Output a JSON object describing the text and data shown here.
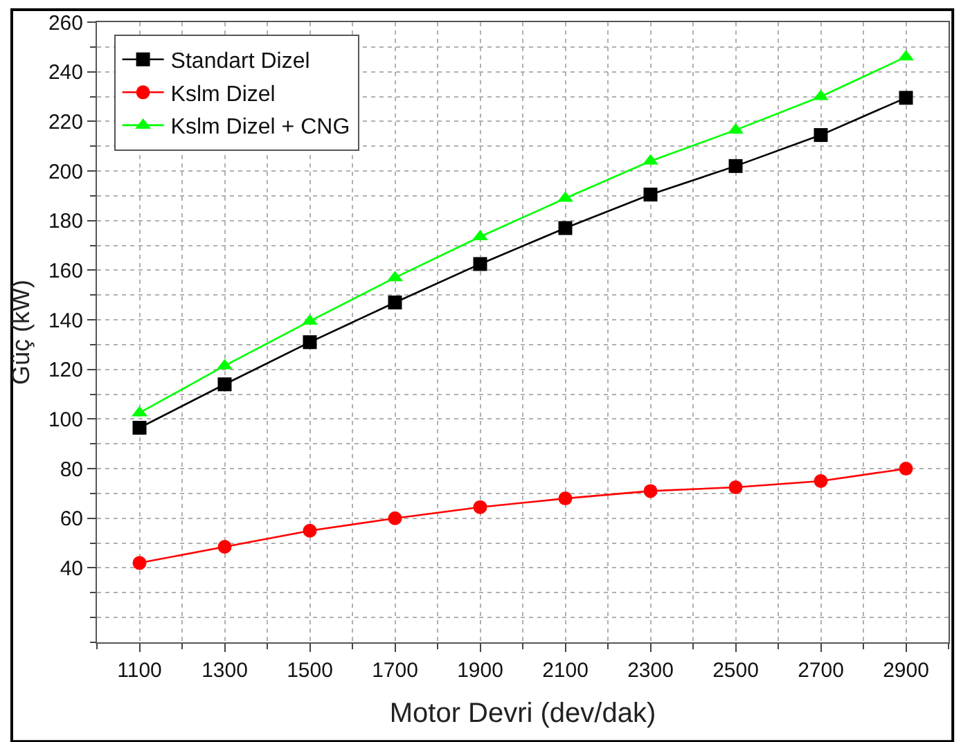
{
  "chart_data": {
    "type": "line",
    "xlabel": "Motor Devri (dev/dak)",
    "ylabel": "Güç (kW)",
    "x": [
      1100,
      1300,
      1500,
      1700,
      1900,
      2100,
      2300,
      2500,
      2700,
      2900
    ],
    "xlim": [
      1000,
      3000
    ],
    "xticks": [
      1100,
      1300,
      1500,
      1700,
      1900,
      2100,
      2300,
      2500,
      2700,
      2900
    ],
    "ylim": [
      10,
      260
    ],
    "yticks": [
      40,
      60,
      80,
      100,
      120,
      140,
      160,
      180,
      200,
      220,
      240,
      260
    ],
    "grid": true,
    "legend": "top left",
    "line_style": "solid",
    "series": [
      {
        "name": "Standart Dizel",
        "color": "#000000",
        "marker": "square",
        "values": [
          96.5,
          114,
          131,
          147,
          162.5,
          177,
          190.5,
          202,
          214.5,
          229.5
        ]
      },
      {
        "name": "Kslm Dizel",
        "color": "#ff0000",
        "marker": "circle",
        "values": [
          42,
          48.5,
          55,
          60,
          64.5,
          68,
          71,
          72.5,
          75,
          80
        ]
      },
      {
        "name": "Kslm Dizel + CNG",
        "color": "#00ff00",
        "marker": "triangle",
        "values": [
          102.5,
          121.5,
          139.5,
          157,
          173.5,
          189,
          204,
          216.5,
          230,
          246
        ]
      }
    ]
  }
}
